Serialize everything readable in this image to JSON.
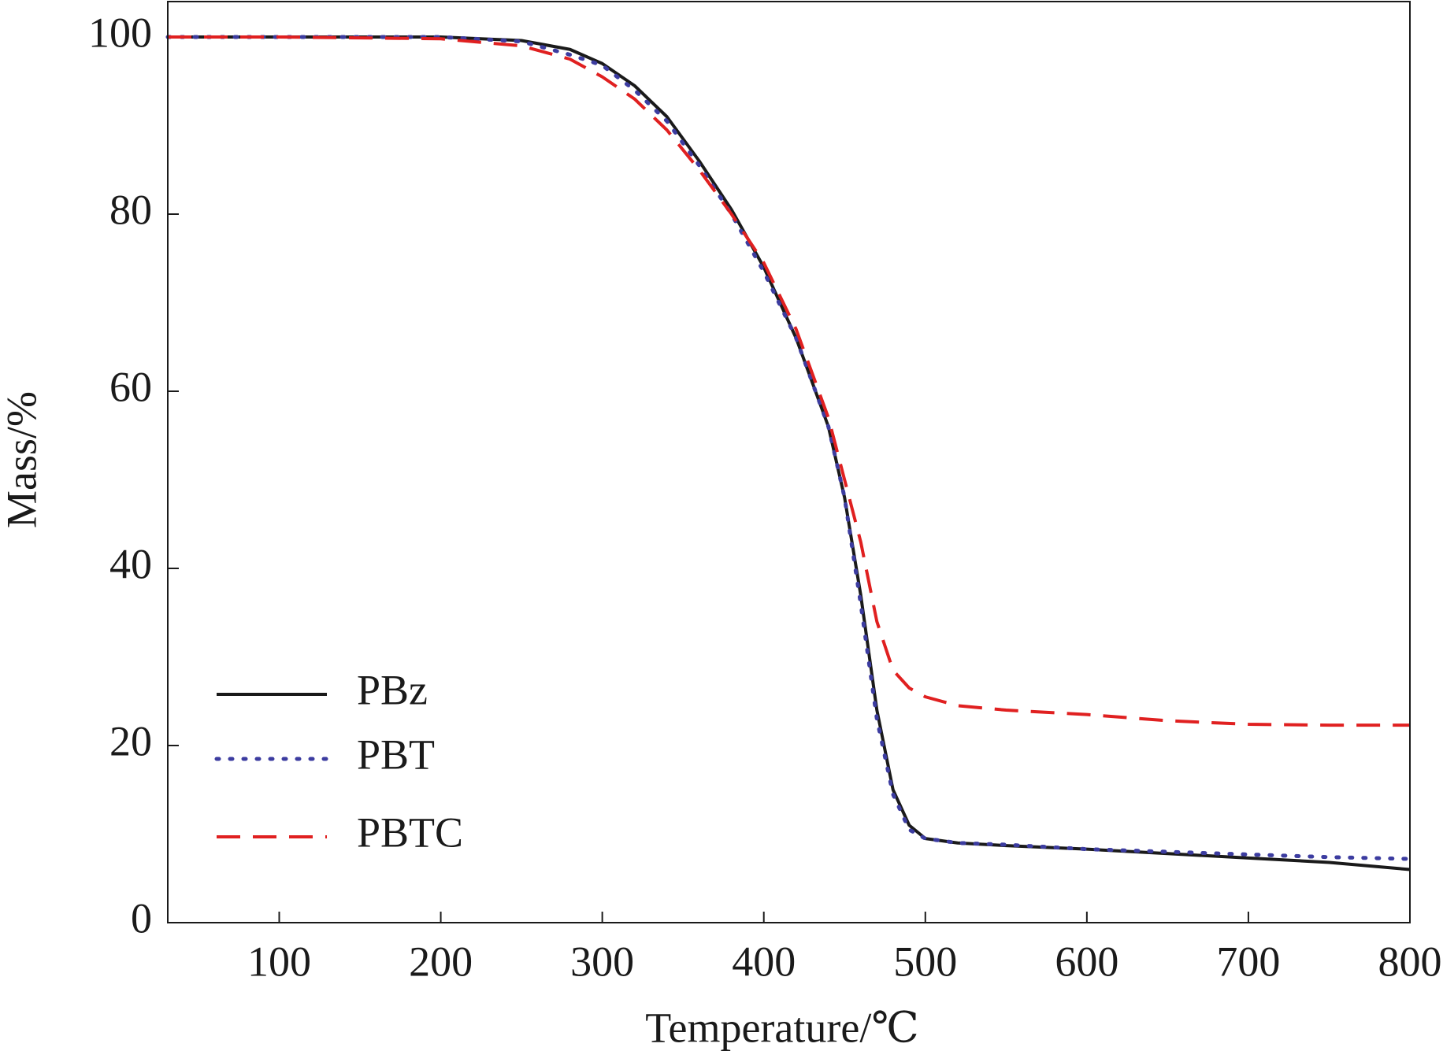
{
  "chart_data": {
    "type": "line",
    "x_label": "Temperature/℃",
    "y_label": "Mass/%",
    "x": [
      31,
      100,
      200,
      250,
      280,
      300,
      320,
      340,
      360,
      380,
      400,
      420,
      440,
      450,
      460,
      470,
      480,
      490,
      500,
      520,
      550,
      600,
      650,
      700,
      750,
      800
    ],
    "series": [
      {
        "name": "PBz",
        "color": "#1a1a1a",
        "style": "solid",
        "values": [
          100,
          100,
          100,
          99.6,
          98.6,
          97,
          94.5,
          91,
          86,
          80.5,
          74,
          66,
          56,
          48,
          37,
          24,
          15,
          11,
          9.5,
          9,
          8.7,
          8.3,
          7.8,
          7.3,
          6.8,
          6
        ]
      },
      {
        "name": "PBT",
        "color": "#3c3ca0",
        "style": "dotted",
        "values": [
          100,
          100,
          100,
          99.5,
          98,
          96.8,
          94,
          90.5,
          85.5,
          80,
          73.5,
          66,
          56,
          48,
          36,
          23,
          14.5,
          10.5,
          9.5,
          9,
          8.8,
          8.3,
          8,
          7.7,
          7.4,
          7.2
        ]
      },
      {
        "name": "PBTC",
        "color": "#e02020",
        "style": "dashed",
        "values": [
          100,
          100,
          99.8,
          99,
          97.5,
          95.5,
          93,
          89.5,
          85,
          80,
          74.5,
          67,
          57,
          50,
          43,
          34,
          28.5,
          26.5,
          25.5,
          24.5,
          24,
          23.5,
          22.8,
          22.4,
          22.3,
          22.3
        ]
      }
    ],
    "xlim": [
      31,
      800
    ],
    "ylim": [
      0,
      104
    ],
    "xticks": [
      100,
      200,
      300,
      400,
      500,
      600,
      700,
      800
    ],
    "yticks": [
      0,
      20,
      40,
      60,
      80,
      100
    ],
    "legend": "lower left"
  }
}
